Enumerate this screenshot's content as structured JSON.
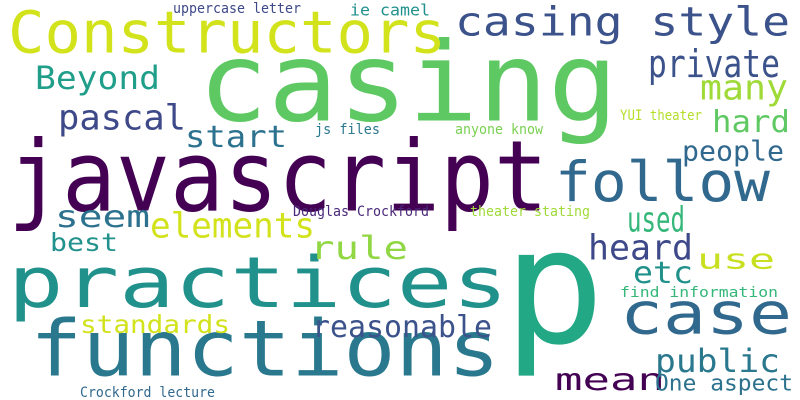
{
  "words": [
    {
      "text": "casing",
      "color": "#5ec962"
    },
    {
      "text": "javascript",
      "color": "#440154"
    },
    {
      "text": "p",
      "color": "#22a884"
    },
    {
      "text": "practices",
      "color": "#21918c"
    },
    {
      "text": "functions",
      "color": "#2a788e"
    },
    {
      "text": "Constructors",
      "color": "#d2e21b"
    },
    {
      "text": "case",
      "color": "#31688e"
    },
    {
      "text": "casing style",
      "color": "#3b528b"
    },
    {
      "text": "follow",
      "color": "#31688e"
    },
    {
      "text": "private",
      "color": "#3b528b"
    },
    {
      "text": "Beyond",
      "color": "#1f9e89"
    },
    {
      "text": "many",
      "color": "#a0da39"
    },
    {
      "text": "pascal",
      "color": "#3e4989"
    },
    {
      "text": "hard",
      "color": "#5ec962"
    },
    {
      "text": "start",
      "color": "#2c728e"
    },
    {
      "text": "people",
      "color": "#31688e"
    },
    {
      "text": "seem",
      "color": "#2c728e"
    },
    {
      "text": "elements",
      "color": "#d2e21b"
    },
    {
      "text": "used",
      "color": "#35b779"
    },
    {
      "text": "best",
      "color": "#21918c"
    },
    {
      "text": "rule",
      "color": "#90d743"
    },
    {
      "text": "heard",
      "color": "#3e4989"
    },
    {
      "text": "use",
      "color": "#c8e020"
    },
    {
      "text": "etc",
      "color": "#21918c"
    },
    {
      "text": "standards",
      "color": "#d2e21b"
    },
    {
      "text": "reasonable",
      "color": "#3b528b"
    },
    {
      "text": "public",
      "color": "#2a788e"
    },
    {
      "text": "mean",
      "color": "#440154"
    },
    {
      "text": "One aspect",
      "color": "#2c728e"
    },
    {
      "text": "uppercase letter",
      "color": "#3e4989"
    },
    {
      "text": "ie camel",
      "color": "#21918c"
    },
    {
      "text": "js files",
      "color": "#2a788e"
    },
    {
      "text": "anyone know",
      "color": "#7ad151"
    },
    {
      "text": "YUI theater",
      "color": "#b5de2b"
    },
    {
      "text": "Douglas Crockford",
      "color": "#482878"
    },
    {
      "text": "theater stating",
      "color": "#a0da39"
    },
    {
      "text": "find information",
      "color": "#35b779"
    },
    {
      "text": "Crockford lecture",
      "color": "#31688e"
    }
  ]
}
